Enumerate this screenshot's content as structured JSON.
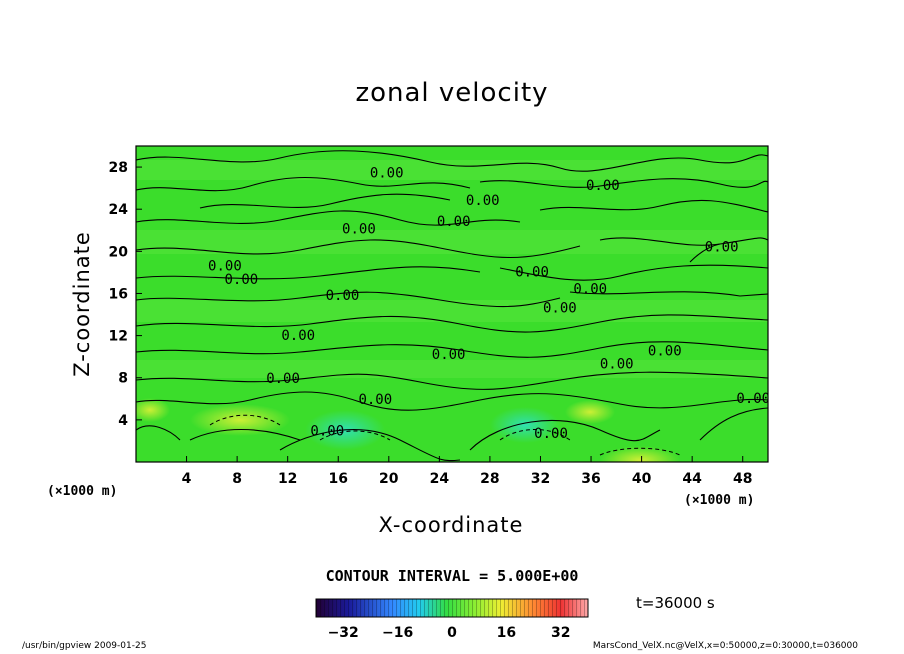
{
  "chart_data": {
    "type": "heatmap",
    "title": "zonal velocity",
    "xlabel": "X-coordinate",
    "ylabel": "Z-coordinate",
    "xlim": [
      0,
      50
    ],
    "ylim": [
      0,
      30
    ],
    "x_ticks": [
      "4",
      "8",
      "12",
      "16",
      "20",
      "24",
      "28",
      "32",
      "36",
      "40",
      "44",
      "48"
    ],
    "y_ticks": [
      "4",
      "8",
      "12",
      "16",
      "20",
      "24",
      "28"
    ],
    "x_unit": "(×1000 m)",
    "y_unit": "(×1000 m)",
    "contour_interval": "CONTOUR INTERVAL = 5.000E+00",
    "contour_labels": [
      {
        "text": "0.00",
        "x": 18.5,
        "z": 27.0
      },
      {
        "text": "0.00",
        "x": 35.6,
        "z": 25.8
      },
      {
        "text": "0.00",
        "x": 26.1,
        "z": 24.4
      },
      {
        "text": "0.00",
        "x": 23.8,
        "z": 22.4
      },
      {
        "text": "0.00",
        "x": 16.3,
        "z": 21.7
      },
      {
        "text": "0.00",
        "x": 45.0,
        "z": 20.0
      },
      {
        "text": "0.00",
        "x": 5.7,
        "z": 18.2
      },
      {
        "text": "0.00",
        "x": 7.0,
        "z": 16.9
      },
      {
        "text": "0.00",
        "x": 30.0,
        "z": 17.6
      },
      {
        "text": "0.00",
        "x": 34.6,
        "z": 16.0
      },
      {
        "text": "0.00",
        "x": 15.0,
        "z": 15.4
      },
      {
        "text": "0.00",
        "x": 32.2,
        "z": 14.2
      },
      {
        "text": "0.00",
        "x": 11.5,
        "z": 11.6
      },
      {
        "text": "0.00",
        "x": 23.4,
        "z": 9.8
      },
      {
        "text": "0.00",
        "x": 36.7,
        "z": 8.9
      },
      {
        "text": "0.00",
        "x": 40.5,
        "z": 10.1
      },
      {
        "text": "0.00",
        "x": 10.3,
        "z": 7.5
      },
      {
        "text": "0.00",
        "x": 17.6,
        "z": 5.5
      },
      {
        "text": "0.00",
        "x": 13.8,
        "z": 2.5
      },
      {
        "text": "0.00",
        "x": 31.5,
        "z": 2.3
      },
      {
        "text": "0.00",
        "x": 47.5,
        "z": 5.6
      }
    ],
    "colorbar": {
      "ticks": [
        "-32",
        "-16",
        "0",
        "16",
        "32"
      ],
      "min": -40,
      "max": 40
    },
    "time_label": "t=36000 s",
    "colors": {
      "background_green": "#33dd22",
      "light_green": "#7ff05a",
      "yellow_green": "#ccef35"
    }
  },
  "footer_left": "/usr/bin/gpview 2009-01-25",
  "footer_right": "MarsCond_VelX.nc@VelX,x=0:50000,z=0:30000,t=036000"
}
